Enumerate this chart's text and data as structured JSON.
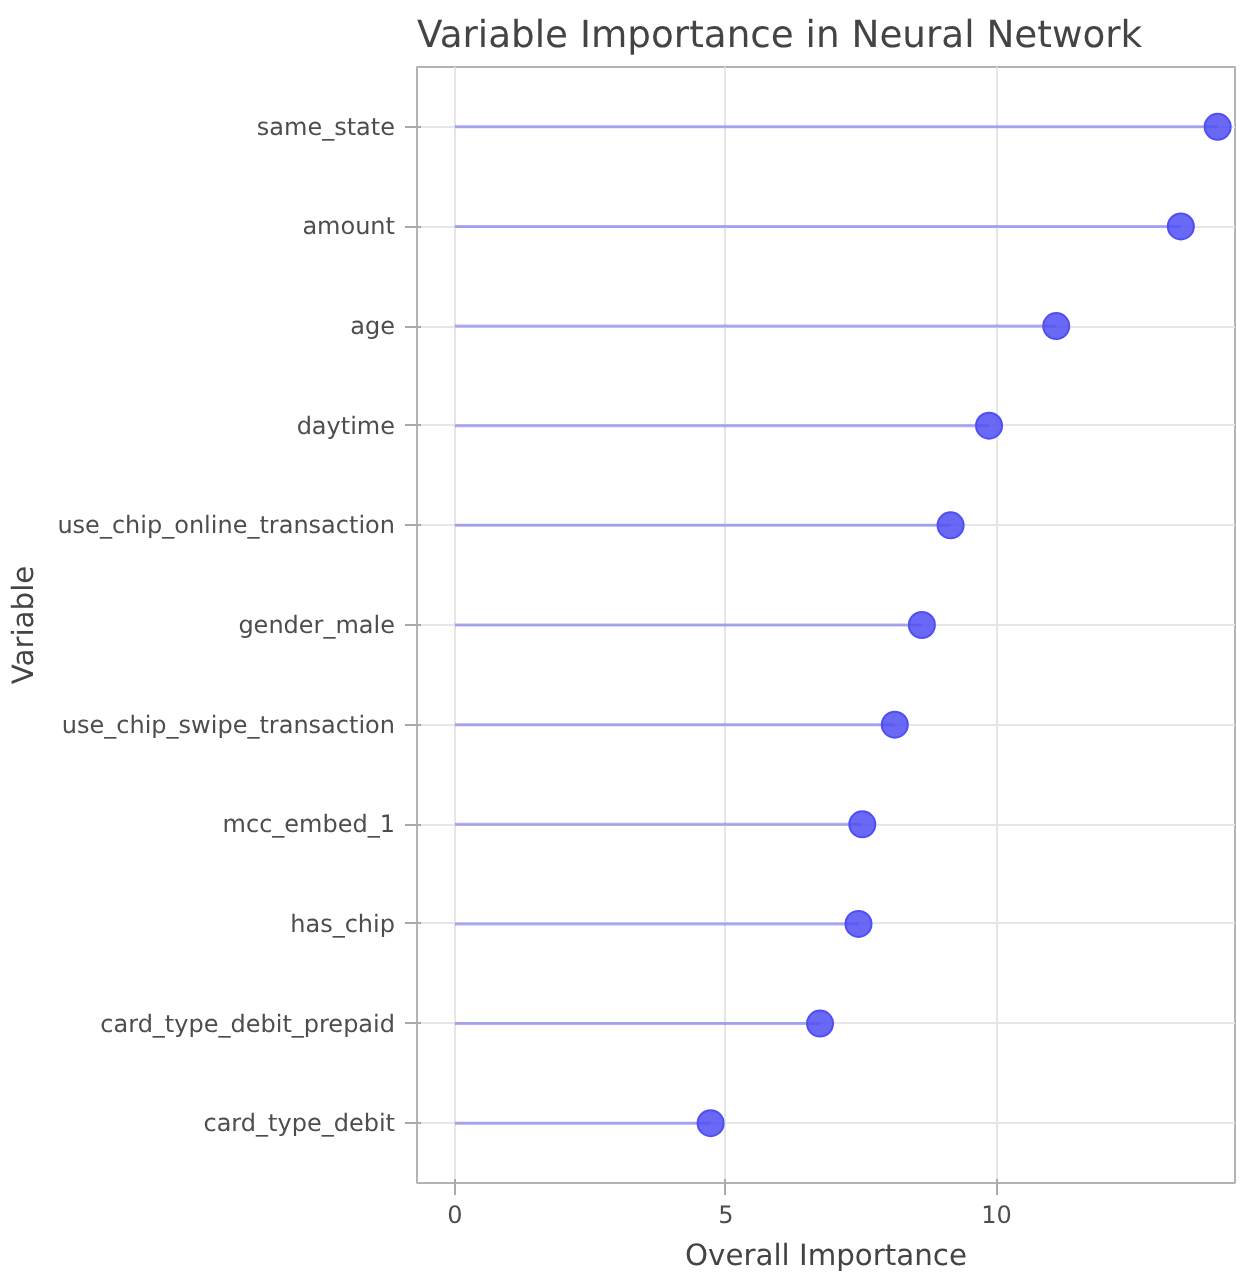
{
  "chart_data": {
    "type": "lollipop",
    "orientation": "horizontal",
    "title": "Variable Importance in Neural Network",
    "xlabel": "Overall Importance",
    "ylabel": "Variable",
    "categories": [
      "same_state",
      "amount",
      "age",
      "daytime",
      "use_chip_online_transaction",
      "gender_male",
      "use_chip_swipe_transaction",
      "mcc_embed_1",
      "has_chip",
      "card_type_debit_prepaid",
      "card_type_debit"
    ],
    "series": [
      {
        "color": "#4f4ff5",
        "values": [
          14.08,
          13.4,
          11.1,
          9.86,
          9.15,
          8.62,
          8.12,
          7.52,
          7.45,
          6.74,
          4.72
        ]
      }
    ],
    "xlim": [
      -0.7,
      14.4
    ],
    "xticks": [
      0,
      5,
      10
    ],
    "grid": true,
    "marker": "circle"
  }
}
